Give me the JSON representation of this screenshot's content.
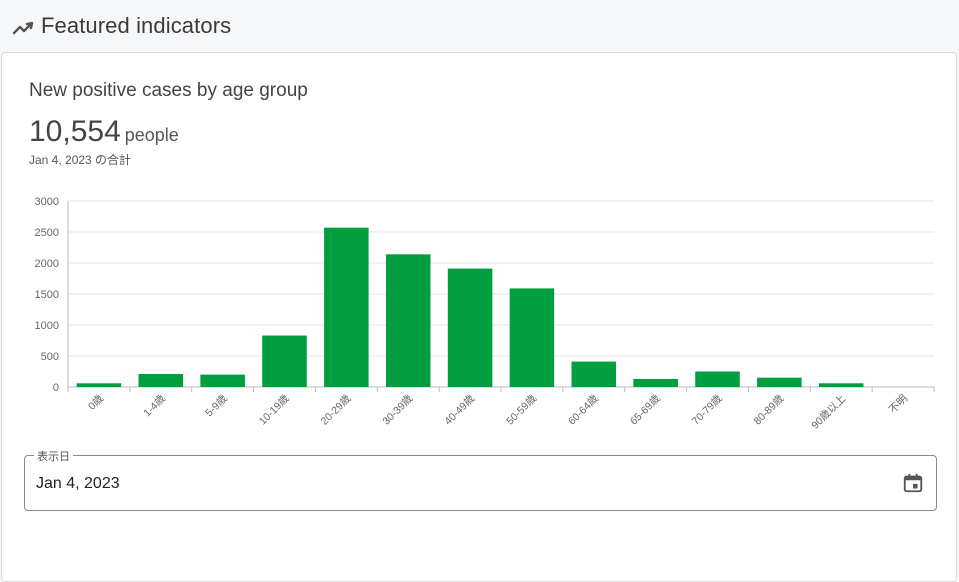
{
  "header": {
    "title": "Featured indicators",
    "icon": "trending-up-icon"
  },
  "card": {
    "title": "New positive cases by age group",
    "value": "10,554",
    "unit": "people",
    "date_note": "Jan 4, 2023 の合計"
  },
  "date_field": {
    "label": "表示日",
    "value": "Jan 4, 2023",
    "icon": "calendar-icon"
  },
  "colors": {
    "bar": "#009e3f",
    "grid": "#e6e6e6",
    "axis": "#bdbdbd"
  },
  "chart_data": {
    "type": "bar",
    "title": "",
    "xlabel": "",
    "ylabel": "",
    "categories": [
      "0歳",
      "1-4歳",
      "5-9歳",
      "10-19歳",
      "20-29歳",
      "30-39歳",
      "40-49歳",
      "50-59歳",
      "60-64歳",
      "65-69歳",
      "70-79歳",
      "80-89歳",
      "90歳以上",
      "不明"
    ],
    "values": [
      60,
      210,
      200,
      830,
      2570,
      2140,
      1910,
      1590,
      410,
      130,
      250,
      150,
      60,
      0
    ],
    "ylim": [
      0,
      3000
    ],
    "yticks": [
      0,
      500,
      1000,
      1500,
      2000,
      2500,
      3000
    ],
    "grid": true,
    "legend": "none"
  }
}
